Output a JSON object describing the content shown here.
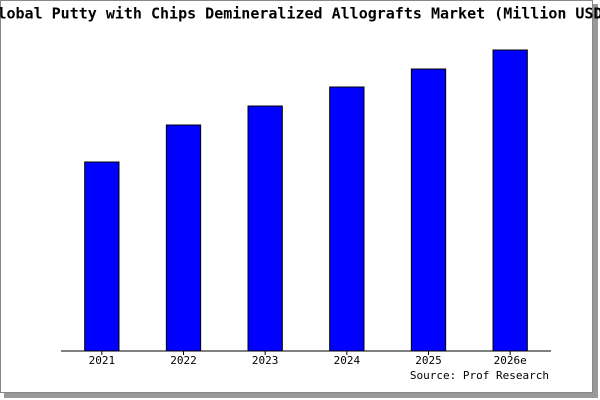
{
  "chart_data": {
    "type": "bar",
    "title": "Global Putty with Chips Demineralized Allografts Market (Million USD)",
    "categories": [
      "2021",
      "2022",
      "2023",
      "2024",
      "2025",
      "2026e"
    ],
    "values": [
      189,
      226,
      245,
      264,
      282,
      301
    ],
    "color": "#0000ff",
    "ylim": [
      0,
      301
    ],
    "source": "Source: Prof Research"
  }
}
